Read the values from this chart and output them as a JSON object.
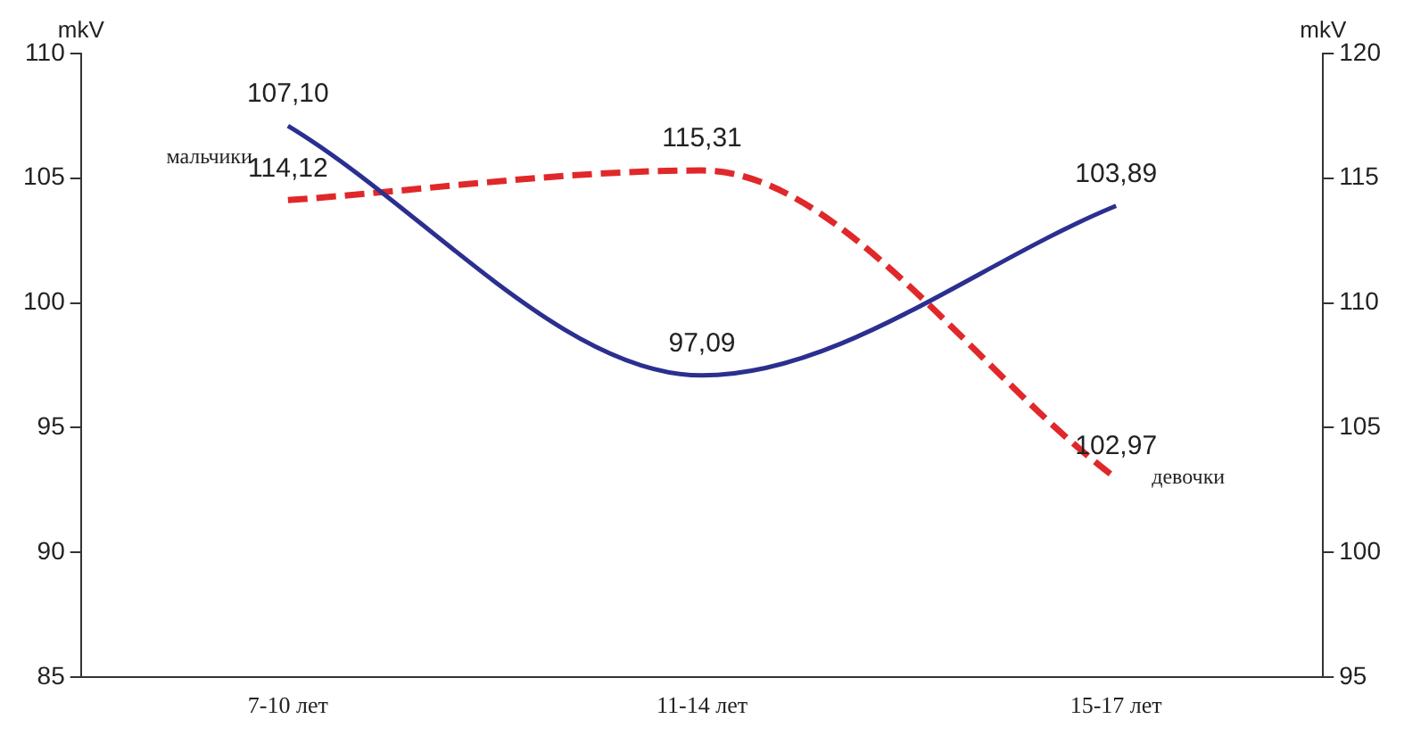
{
  "chart_data": {
    "type": "line",
    "ylabel": "mkV",
    "y2label": "mkV",
    "categories": [
      "7-10 лет",
      "11-14 лет",
      "15-17 лет"
    ],
    "series": [
      {
        "name": "мальчики",
        "color": "#2b2f8f",
        "values": [
          107.1,
          97.09,
          103.89
        ],
        "value_labels": [
          "107,10",
          "97,09",
          "103,89"
        ],
        "line_style": "solid"
      },
      {
        "name": "девочки",
        "color": "#e0282a",
        "values": [
          114.12,
          115.31,
          102.97
        ],
        "value_labels": [
          "114,12",
          "115,31",
          "102,97"
        ],
        "line_style": "dashed",
        "axis": "y2"
      }
    ],
    "ylim": [
      85,
      110
    ],
    "yticks": [
      85,
      90,
      95,
      100,
      105,
      110
    ],
    "y2lim": [
      95,
      120
    ],
    "y2ticks": [
      95,
      100,
      105,
      110,
      115,
      120
    ],
    "grid": false,
    "legend": false,
    "marker": "none"
  }
}
